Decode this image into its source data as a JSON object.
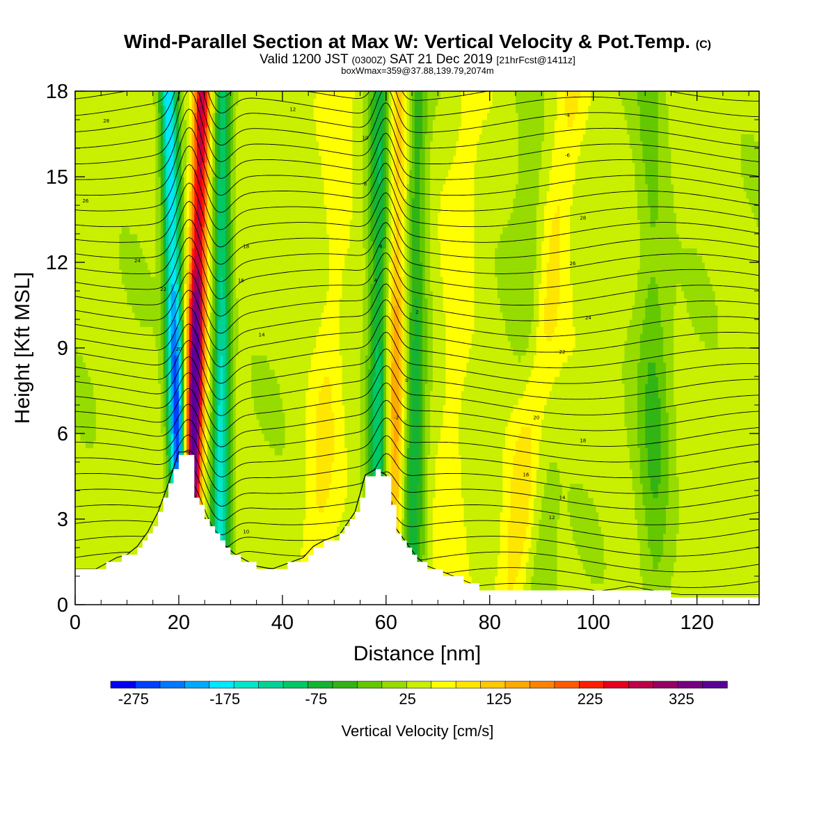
{
  "title": {
    "main": "Wind-Parallel Section at Max W: Vertical Velocity & Pot.Temp.",
    "copyright": "(C)",
    "valid_prefix": "Valid 1200 JST",
    "valid_zulu": "(0300Z)",
    "valid_date": "SAT 21 Dec 2019",
    "forecast_info": "[21hrFcst@1411z]",
    "box_info": "boxWmax=359@37.88,139.79,2074m"
  },
  "chart_data": {
    "type": "heatmap",
    "xlabel": "Distance [nm]",
    "ylabel": "Height [Kft MSL]",
    "xlim": [
      0,
      132
    ],
    "ylim": [
      0,
      18
    ],
    "x_ticks": [
      0,
      20,
      40,
      60,
      80,
      100,
      120
    ],
    "y_ticks": [
      0,
      3,
      6,
      9,
      12,
      15,
      18
    ],
    "colorbar": {
      "label": "Vertical Velocity [cm/s]",
      "min": -300,
      "max": 375,
      "step": 25,
      "tick_labels": [
        "-275",
        "-175",
        "-75",
        "25",
        "125",
        "225",
        "325"
      ],
      "colors": [
        "#0000f0",
        "#0040ff",
        "#0078ff",
        "#00aaff",
        "#00e6ff",
        "#00e6c8",
        "#00d296",
        "#00c864",
        "#14b432",
        "#32b414",
        "#64c800",
        "#96dc00",
        "#c8f000",
        "#ffff00",
        "#ffe600",
        "#ffc800",
        "#ffaa00",
        "#ff8200",
        "#ff5a00",
        "#ff1e00",
        "#e6001e",
        "#be0046",
        "#960064",
        "#780082",
        "#5a0096"
      ]
    },
    "terrain_kft": [
      [
        0,
        1.2
      ],
      [
        4,
        1.2
      ],
      [
        6,
        1.4
      ],
      [
        8,
        1.6
      ],
      [
        10,
        1.7
      ],
      [
        12,
        2.0
      ],
      [
        14,
        2.5
      ],
      [
        16,
        3.2
      ],
      [
        18,
        4.2
      ],
      [
        20,
        5.3
      ],
      [
        22,
        5.3
      ],
      [
        23,
        3.8
      ],
      [
        25,
        3.0
      ],
      [
        27,
        2.4
      ],
      [
        29,
        2.0
      ],
      [
        31,
        1.7
      ],
      [
        33,
        1.5
      ],
      [
        35,
        1.3
      ],
      [
        38,
        1.2
      ],
      [
        41,
        1.4
      ],
      [
        44,
        1.6
      ],
      [
        46,
        2.0
      ],
      [
        48,
        2.2
      ],
      [
        51,
        2.4
      ],
      [
        54,
        3.2
      ],
      [
        56,
        4.5
      ],
      [
        58,
        4.7
      ],
      [
        60,
        4.5
      ],
      [
        61,
        3.4
      ],
      [
        62,
        2.6
      ],
      [
        64,
        2.1
      ],
      [
        66,
        1.6
      ],
      [
        68,
        1.3
      ],
      [
        71,
        1.1
      ],
      [
        75,
        0.8
      ],
      [
        79,
        0.5
      ],
      [
        82,
        0.4
      ],
      [
        85,
        0.5
      ],
      [
        89,
        0.6
      ],
      [
        94,
        0.5
      ],
      [
        97,
        0.5
      ],
      [
        100,
        0.4
      ],
      [
        104,
        0.5
      ],
      [
        107,
        0.6
      ],
      [
        110,
        0.5
      ],
      [
        113,
        0.4
      ],
      [
        117,
        0.3
      ],
      [
        121,
        0.3
      ],
      [
        126,
        0.3
      ],
      [
        132,
        0.3
      ]
    ],
    "updrafts": [
      {
        "name": "updraft-1",
        "x_bottom": 22,
        "x_top": 24.5,
        "peak": 330
      },
      {
        "name": "updraft-2",
        "x_bottom": 61,
        "x_top": 62.5,
        "peak": 130
      },
      {
        "name": "updraft-3",
        "x_bottom": 84,
        "x_top": 96,
        "peak": 70
      },
      {
        "name": "updraft-4",
        "x_bottom": 71,
        "x_top": 76,
        "peak": 35
      },
      {
        "name": "updraft-5",
        "x_bottom": 46,
        "x_top": 52,
        "peak": 40
      }
    ],
    "downdrafts": [
      {
        "name": "downdraft-1",
        "x_bottom": 20.5,
        "x_top": 18,
        "peak": -280
      },
      {
        "name": "downdraft-2",
        "x_bottom": 28,
        "x_top": 28.5,
        "peak": -180
      },
      {
        "name": "downdraft-3",
        "x_bottom": 58.5,
        "x_top": 59,
        "peak": -150
      },
      {
        "name": "downdraft-4",
        "x_bottom": 65,
        "x_top": 66,
        "peak": -110
      },
      {
        "name": "downdraft-5",
        "x_bottom": 112,
        "x_top": 111,
        "peak": -60
      },
      {
        "name": "downdraft-6",
        "x_bottom": 90,
        "x_top": 87,
        "peak": -40
      }
    ],
    "isentrope_label_values": [
      "-6",
      "-4",
      "-2",
      "0",
      "2",
      "4",
      "6",
      "8",
      "10",
      "12",
      "14",
      "16",
      "18",
      "20",
      "22",
      "24",
      "26",
      "28"
    ]
  }
}
